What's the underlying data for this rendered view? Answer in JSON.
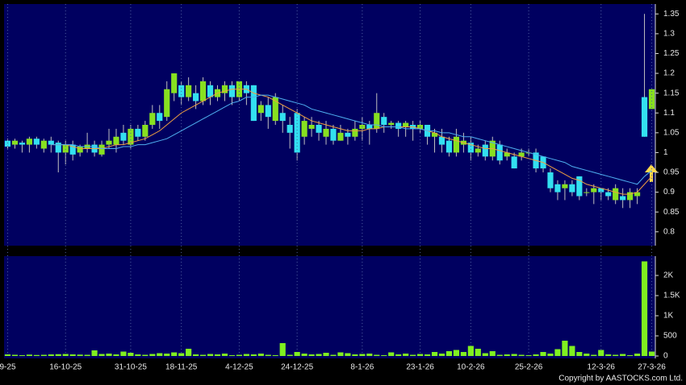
{
  "chart_data": [
    {
      "type": "candlestick",
      "up_color": "#88e020",
      "down_color": "#33e0f0",
      "ylim": [
        0.765,
        1.375
      ],
      "yticks": [
        0.8,
        0.85,
        0.9,
        0.95,
        1,
        1.05,
        1.1,
        1.15,
        1.2,
        1.25,
        1.3,
        1.35
      ],
      "open": [
        1.03,
        1.02,
        1.025,
        1.02,
        1.035,
        1.01,
        1.03,
        1.025,
        1.0,
        1.02,
        1.0,
        1.01,
        1.02,
        0.995,
        1.02,
        1.02,
        1.05,
        1.02,
        1.06,
        1.04,
        1.07,
        1.1,
        1.09,
        1.15,
        1.17,
        1.14,
        1.15,
        1.13,
        1.17,
        1.14,
        1.15,
        1.17,
        1.14,
        1.17,
        1.17,
        1.1,
        1.12,
        1.08,
        1.1,
        1.07,
        1.1,
        1.04,
        1.06,
        1.07,
        1.04,
        1.06,
        1.03,
        1.05,
        1.04,
        1.06,
        1.07,
        1.06,
        1.09,
        1.07,
        1.075,
        1.065,
        1.07,
        1.06,
        1.07,
        1.04,
        1.04,
        1.03,
        1.0,
        1.02,
        1.025,
        1.0,
        1.02,
        0.99,
        1.02,
        0.99,
        0.99,
        0.99,
        1.0,
        1.0,
        0.99,
        0.95,
        0.92,
        0.91,
        0.92,
        0.94,
        0.9,
        0.9,
        0.91,
        0.9,
        0.88,
        0.89,
        0.88,
        0.89,
        1.14,
        1.11
      ],
      "high": [
        1.035,
        1.035,
        1.03,
        1.04,
        1.04,
        1.035,
        1.04,
        1.03,
        1.03,
        1.03,
        1.02,
        1.05,
        1.03,
        1.03,
        1.06,
        1.06,
        1.07,
        1.07,
        1.07,
        1.08,
        1.12,
        1.12,
        1.18,
        1.2,
        1.18,
        1.19,
        1.17,
        1.19,
        1.18,
        1.17,
        1.18,
        1.18,
        1.18,
        1.18,
        1.17,
        1.13,
        1.14,
        1.15,
        1.12,
        1.09,
        1.11,
        1.09,
        1.09,
        1.08,
        1.08,
        1.07,
        1.07,
        1.06,
        1.08,
        1.09,
        1.08,
        1.15,
        1.1,
        1.08,
        1.08,
        1.08,
        1.08,
        1.08,
        1.07,
        1.06,
        1.06,
        1.04,
        1.06,
        1.05,
        1.04,
        1.02,
        1.03,
        1.04,
        1.03,
        1.01,
        1.0,
        1.01,
        1.01,
        1.01,
        0.99,
        0.96,
        0.93,
        0.93,
        0.93,
        0.94,
        0.91,
        0.92,
        0.91,
        0.91,
        0.92,
        0.91,
        0.91,
        0.91,
        1.35,
        1.16
      ],
      "low": [
        1.01,
        1.01,
        1.0,
        1.0,
        1.01,
        1.0,
        1.0,
        0.95,
        0.97,
        0.98,
        0.99,
        1.0,
        0.99,
        0.99,
        1.01,
        1.0,
        1.02,
        1.01,
        1.03,
        1.03,
        1.06,
        1.06,
        1.08,
        1.13,
        1.12,
        1.13,
        1.11,
        1.12,
        1.12,
        1.13,
        1.13,
        1.12,
        1.13,
        1.12,
        1.08,
        1.08,
        1.06,
        1.07,
        1.05,
        1.01,
        0.98,
        1.02,
        1.04,
        1.03,
        1.02,
        1.02,
        1.03,
        1.02,
        1.03,
        1.03,
        1.02,
        1.05,
        1.05,
        1.06,
        1.04,
        1.04,
        1.03,
        1.05,
        1.02,
        1.0,
        1.0,
        0.99,
        0.99,
        1.0,
        0.98,
        0.99,
        0.98,
        0.98,
        0.97,
        0.98,
        0.96,
        0.98,
        0.99,
        0.95,
        0.95,
        0.9,
        0.88,
        0.88,
        0.89,
        0.88,
        0.89,
        0.87,
        0.88,
        0.88,
        0.87,
        0.86,
        0.86,
        0.87,
        1.04,
        1.11
      ],
      "close": [
        1.015,
        1.03,
        1.02,
        1.035,
        1.02,
        1.03,
        1.02,
        1.0,
        1.02,
        0.995,
        1.015,
        1.02,
        1.0,
        1.02,
        1.03,
        1.04,
        1.03,
        1.06,
        1.04,
        1.07,
        1.1,
        1.08,
        1.16,
        1.2,
        1.14,
        1.17,
        1.13,
        1.18,
        1.14,
        1.16,
        1.17,
        1.14,
        1.18,
        1.15,
        1.08,
        1.12,
        1.09,
        1.14,
        1.08,
        1.05,
        1.0,
        1.08,
        1.07,
        1.05,
        1.06,
        1.03,
        1.05,
        1.04,
        1.06,
        1.07,
        1.06,
        1.1,
        1.07,
        1.075,
        1.06,
        1.075,
        1.06,
        1.07,
        1.04,
        1.05,
        1.02,
        1.0,
        1.04,
        1.03,
        1.0,
        1.01,
        0.99,
        1.03,
        0.98,
        1.0,
        0.96,
        1.0,
        1.0,
        0.96,
        0.96,
        0.91,
        0.9,
        0.92,
        0.9,
        0.89,
        0.9,
        0.91,
        0.9,
        0.89,
        0.91,
        0.88,
        0.9,
        0.9,
        1.04,
        1.16
      ],
      "series": [
        {
          "color": "#f0a040",
          "values": [
            null,
            null,
            null,
            null,
            null,
            null,
            1.02,
            1.02,
            1.02,
            1.015,
            1.01,
            1.01,
            1.01,
            1.01,
            1.015,
            1.02,
            1.02,
            1.025,
            1.03,
            1.035,
            1.045,
            1.055,
            1.07,
            1.085,
            1.1,
            1.11,
            1.12,
            1.13,
            1.14,
            1.15,
            1.155,
            1.16,
            1.16,
            1.16,
            1.15,
            1.145,
            1.14,
            1.13,
            1.12,
            1.11,
            1.1,
            1.09,
            1.08,
            1.075,
            1.07,
            1.065,
            1.06,
            1.055,
            1.055,
            1.055,
            1.06,
            1.06,
            1.065,
            1.065,
            1.065,
            1.065,
            1.065,
            1.06,
            1.055,
            1.05,
            1.04,
            1.035,
            1.03,
            1.025,
            1.02,
            1.015,
            1.01,
            1.01,
            1.005,
            1.0,
            0.995,
            0.99,
            0.985,
            0.98,
            0.975,
            0.965,
            0.955,
            0.945,
            0.935,
            0.93,
            0.92,
            0.915,
            0.91,
            0.905,
            0.9,
            0.895,
            0.895,
            0.9,
            0.92,
            0.94
          ]
        },
        {
          "color": "#4fb0f0",
          "values": [
            null,
            null,
            null,
            null,
            null,
            null,
            1.02,
            1.02,
            1.02,
            1.02,
            1.015,
            1.015,
            1.015,
            1.01,
            1.01,
            1.01,
            1.015,
            1.015,
            1.02,
            1.02,
            1.025,
            1.03,
            1.035,
            1.045,
            1.055,
            1.065,
            1.075,
            1.085,
            1.095,
            1.105,
            1.115,
            1.125,
            1.13,
            1.14,
            1.14,
            1.145,
            1.145,
            1.14,
            1.135,
            1.13,
            1.125,
            1.12,
            1.11,
            1.105,
            1.1,
            1.095,
            1.09,
            1.085,
            1.08,
            1.075,
            1.07,
            1.07,
            1.065,
            1.065,
            1.065,
            1.06,
            1.06,
            1.06,
            1.055,
            1.055,
            1.05,
            1.05,
            1.045,
            1.04,
            1.04,
            1.035,
            1.03,
            1.025,
            1.02,
            1.015,
            1.01,
            1.005,
            1.0,
            0.995,
            0.99,
            0.985,
            0.98,
            0.975,
            0.965,
            0.96,
            0.955,
            0.95,
            0.945,
            0.94,
            0.935,
            0.93,
            0.925,
            0.92,
            0.94,
            0.955
          ]
        }
      ]
    },
    {
      "type": "bar",
      "color": "#80f020",
      "ylim": [
        -60,
        2480
      ],
      "yticks": [
        0,
        500,
        {
          "value": 1000,
          "label": "1K"
        },
        {
          "value": 1500,
          "label": "1.5K"
        },
        {
          "value": 2000,
          "label": "2K"
        }
      ],
      "categories": [
        "9-25",
        null,
        null,
        null,
        null,
        null,
        null,
        null,
        "16-10-25",
        null,
        null,
        null,
        null,
        null,
        null,
        null,
        null,
        "31-10-25",
        null,
        null,
        null,
        null,
        null,
        null,
        "18-11-25",
        null,
        null,
        null,
        null,
        null,
        null,
        null,
        "4-12-25",
        null,
        null,
        null,
        null,
        null,
        null,
        null,
        "24-12-25",
        null,
        null,
        null,
        null,
        null,
        null,
        null,
        null,
        "8-1-26",
        null,
        null,
        null,
        null,
        null,
        null,
        null,
        "23-1-26",
        null,
        null,
        null,
        null,
        null,
        null,
        "10-2-26",
        null,
        null,
        null,
        null,
        null,
        null,
        null,
        "25-2-26",
        null,
        null,
        null,
        null,
        null,
        null,
        null,
        null,
        null,
        "12-3-26",
        null,
        null,
        null,
        null,
        null,
        null,
        "27-3-26"
      ],
      "values": [
        40,
        30,
        20,
        35,
        25,
        30,
        40,
        45,
        50,
        40,
        35,
        30,
        140,
        50,
        60,
        40,
        110,
        80,
        40,
        30,
        50,
        70,
        60,
        90,
        70,
        180,
        40,
        30,
        50,
        40,
        60,
        20,
        30,
        50,
        40,
        60,
        30,
        20,
        320,
        30,
        100,
        60,
        40,
        50,
        80,
        30,
        90,
        70,
        40,
        50,
        60,
        30,
        20,
        90,
        40,
        60,
        30,
        50,
        40,
        100,
        60,
        120,
        150,
        100,
        250,
        180,
        70,
        120,
        30,
        40,
        50,
        30,
        20,
        40,
        100,
        60,
        170,
        380,
        250,
        100,
        60,
        30,
        150,
        40,
        30,
        50,
        20,
        60,
        2350,
        110
      ]
    },
    {
      "copyright": "Copyright by AASTOCKS.com Ltd."
    }
  ]
}
